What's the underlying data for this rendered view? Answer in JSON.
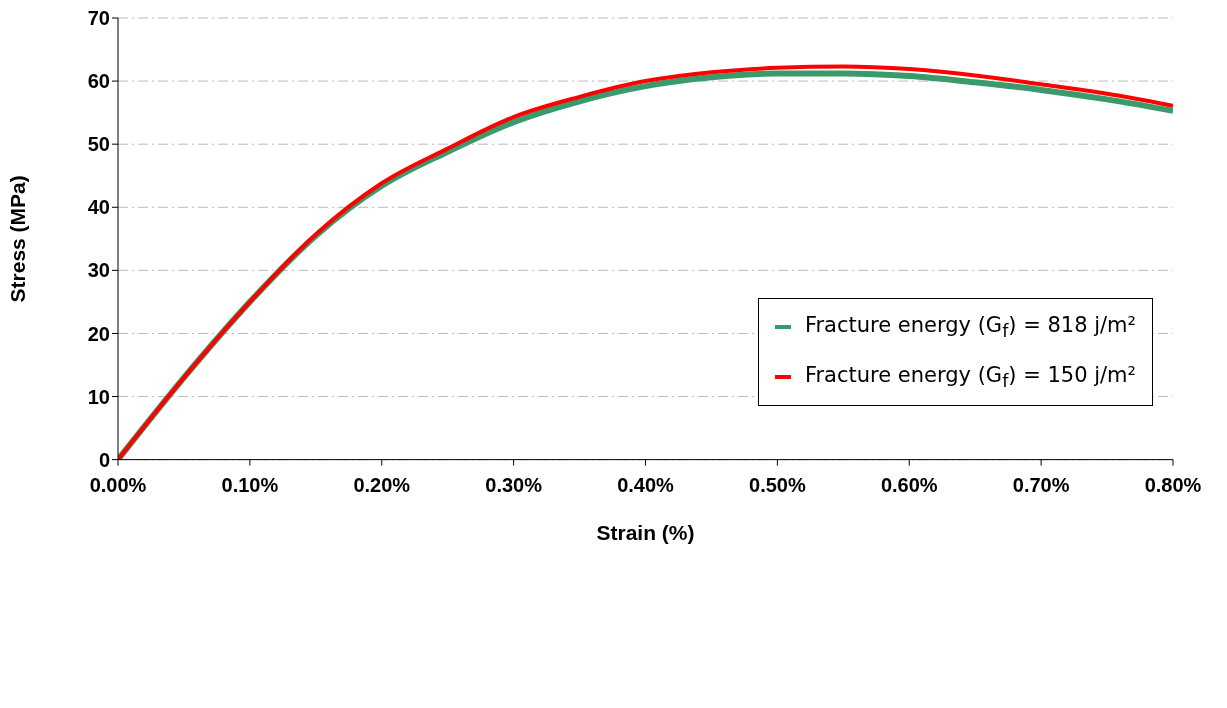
{
  "chart_data": {
    "type": "line",
    "xlabel": "Strain (%)",
    "ylabel": "Stress (MPa)",
    "x": [
      0,
      0.05,
      0.1,
      0.15,
      0.2,
      0.25,
      0.3,
      0.35,
      0.4,
      0.45,
      0.5,
      0.55,
      0.6,
      0.65,
      0.7,
      0.75,
      0.8
    ],
    "series": [
      {
        "name": "Fracture energy (G$_{f}$) = 818 j/m²",
        "color": "#3a9a6a",
        "values": [
          0,
          13,
          25,
          35.5,
          43.4,
          48.8,
          53.5,
          56.8,
          59.2,
          60.6,
          61.2,
          61.2,
          60.8,
          59.8,
          58.6,
          57.1,
          55.3
        ]
      },
      {
        "name": "Fracture energy (G$_{f}$) = 150 j/m²",
        "color": "#ff0000",
        "values": [
          0,
          13,
          25,
          35.7,
          43.8,
          49.3,
          54.3,
          57.5,
          60,
          61.4,
          62.1,
          62.3,
          61.9,
          60.9,
          59.5,
          58,
          56.1
        ]
      }
    ],
    "xlim": [
      0,
      0.8
    ],
    "xticks": [
      {
        "value": 0,
        "label": "0.00%"
      },
      {
        "value": 0.1,
        "label": "0.10%"
      },
      {
        "value": 0.2,
        "label": "0.20%"
      },
      {
        "value": 0.3,
        "label": "0.30%"
      },
      {
        "value": 0.4,
        "label": "0.40%"
      },
      {
        "value": 0.5,
        "label": "0.50%"
      },
      {
        "value": 0.6,
        "label": "0.60%"
      },
      {
        "value": 0.7,
        "label": "0.70%"
      },
      {
        "value": 0.8,
        "label": "0.80%"
      }
    ],
    "ylim": [
      0,
      70
    ],
    "yticks": [
      0,
      10,
      20,
      30,
      40,
      50,
      60,
      70
    ],
    "grid": "y",
    "legend": "right",
    "marker": "none",
    "line_style": "solid"
  }
}
